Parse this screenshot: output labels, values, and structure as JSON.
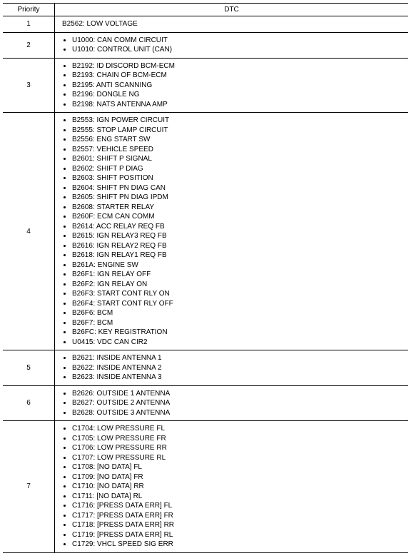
{
  "headers": {
    "priority": "Priority",
    "dtc": "DTC"
  },
  "rows": [
    {
      "priority": "1",
      "items": [
        "B2562: LOW VOLTAGE"
      ]
    },
    {
      "priority": "2",
      "items": [
        "U1000: CAN COMM CIRCUIT",
        "U1010: CONTROL UNIT (CAN)"
      ]
    },
    {
      "priority": "3",
      "items": [
        "B2192: ID DISCORD BCM-ECM",
        "B2193: CHAIN OF BCM-ECM",
        "B2195: ANTI SCANNING",
        "B2196: DONGLE NG",
        "B2198: NATS ANTENNA AMP"
      ]
    },
    {
      "priority": "4",
      "items": [
        "B2553: IGN POWER CIRCUIT",
        "B2555: STOP LAMP CIRCUIT",
        "B2556: ENG START SW",
        "B2557: VEHICLE SPEED",
        "B2601: SHIFT P SIGNAL",
        "B2602: SHIFT P DIAG",
        "B2603: SHIFT POSITION",
        "B2604: SHIFT PN DIAG CAN",
        "B2605: SHIFT PN DIAG IPDM",
        "B2608: STARTER RELAY",
        "B260F: ECM CAN COMM",
        "B2614: ACC RELAY REQ FB",
        "B2615: IGN RELAY3 REQ FB",
        "B2616: IGN RELAY2 REQ FB",
        "B2618: IGN RELAY1 REQ FB",
        "B261A: ENGINE SW",
        "B26F1: IGN RELAY OFF",
        "B26F2: IGN RELAY ON",
        "B26F3: START CONT RLY ON",
        "B26F4: START CONT RLY OFF",
        "B26F6: BCM",
        "B26F7: BCM",
        "B26FC: KEY REGISTRATION",
        "U0415: VDC CAN CIR2"
      ]
    },
    {
      "priority": "5",
      "items": [
        "B2621: INSIDE ANTENNA 1",
        "B2622: INSIDE ANTENNA 2",
        "B2623: INSIDE ANTENNA 3"
      ]
    },
    {
      "priority": "6",
      "items": [
        "B2626: OUTSIDE 1 ANTENNA",
        "B2627: OUTSIDE 2 ANTENNA",
        "B2628: OUTSIDE 3 ANTENNA"
      ]
    },
    {
      "priority": "7",
      "items": [
        "C1704: LOW PRESSURE FL",
        "C1705: LOW PRESSURE FR",
        "C1706: LOW PRESSURE RR",
        "C1707: LOW PRESSURE RL",
        "C1708: [NO DATA] FL",
        "C1709: [NO DATA] FR",
        "C1710: [NO DATA] RR",
        "C1711: [NO DATA] RL",
        "C1716: [PRESS DATA ERR] FL",
        "C1717: [PRESS DATA ERR] FR",
        "C1718: [PRESS DATA ERR] RR",
        "C1719: [PRESS DATA ERR] RL",
        "C1729: VHCL SPEED SIG ERR"
      ]
    }
  ]
}
